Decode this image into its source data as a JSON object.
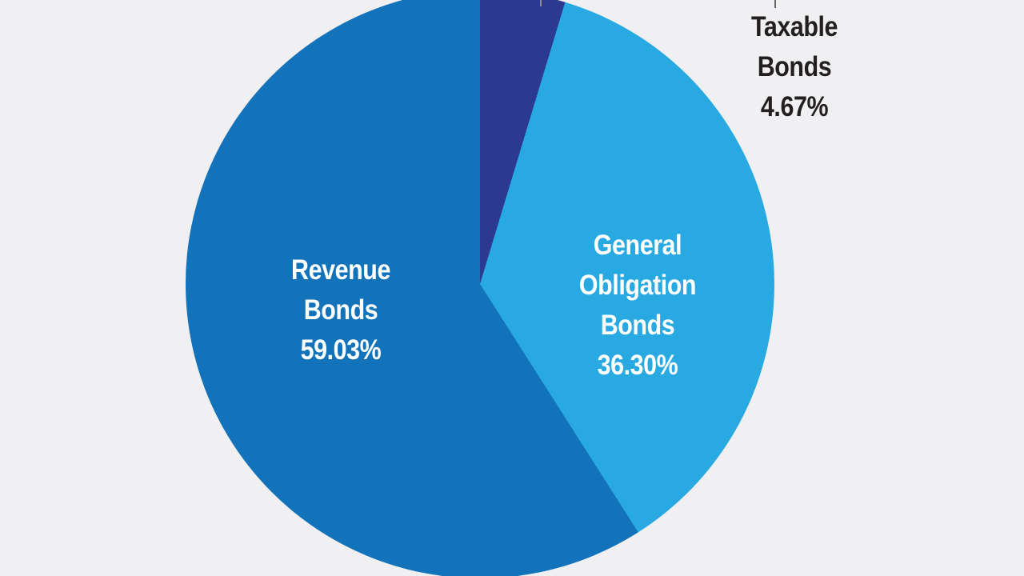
{
  "background_color": "#f0f0f2",
  "leader_line": {
    "slice_tick_color": "#8c8c8c",
    "label_tick_color": "#666666"
  },
  "chart_data": {
    "type": "pie",
    "title": "",
    "start_angle_deg": 0,
    "direction": "clockwise",
    "legend_position": "labels-on-slices",
    "slices": [
      {
        "name": "Taxable Bonds",
        "value": 4.67,
        "percent_label": "4.67%",
        "color": "#2b3990",
        "label_color": "#231f20",
        "label_lines": [
          "Taxable",
          "Bonds",
          "4.67%"
        ]
      },
      {
        "name": "General Obligation Bonds",
        "value": 36.3,
        "percent_label": "36.30%",
        "color": "#29a9e1",
        "label_color": "#ffffff",
        "label_lines": [
          "General",
          "Obligation",
          "Bonds",
          "36.30%"
        ]
      },
      {
        "name": "Revenue Bonds",
        "value": 59.03,
        "percent_label": "59.03%",
        "color": "#1273bb",
        "label_color": "#ffffff",
        "label_lines": [
          "Revenue",
          "Bonds",
          "59.03%"
        ]
      }
    ]
  }
}
